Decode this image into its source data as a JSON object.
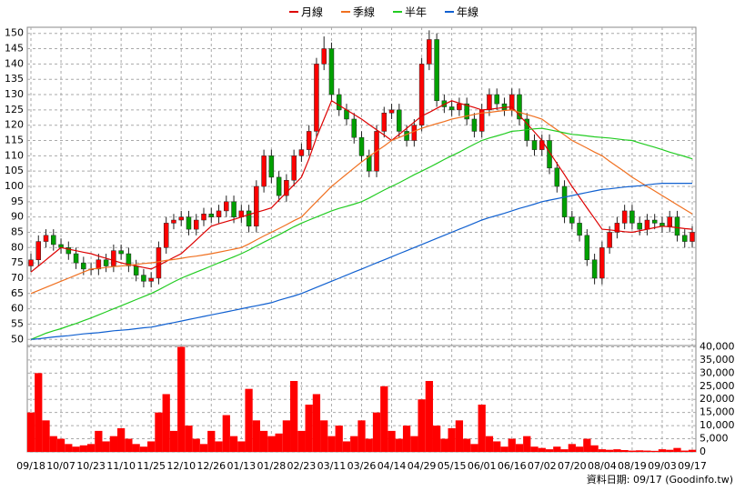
{
  "chart_data": [
    {
      "type": "candlestick",
      "categories": [
        "09/18",
        null,
        null,
        null,
        "10/07",
        null,
        null,
        null,
        "10/23",
        null,
        null,
        null,
        "11/10",
        null,
        null,
        null,
        "11/25",
        null,
        null,
        null,
        "12/10",
        null,
        null,
        null,
        "12/26",
        null,
        null,
        null,
        "01/13",
        null,
        null,
        null,
        "01/28",
        null,
        null,
        null,
        "02/23",
        null,
        null,
        null,
        "03/11",
        null,
        null,
        null,
        "03/26",
        null,
        null,
        null,
        "04/14",
        null,
        null,
        null,
        "04/29",
        null,
        null,
        null,
        "05/15",
        null,
        null,
        null,
        "06/01",
        null,
        null,
        null,
        "06/16",
        null,
        null,
        null,
        "07/02",
        null,
        null,
        null,
        "07/20",
        null,
        null,
        null,
        "08/04",
        null,
        null,
        null,
        "08/19",
        null,
        null,
        null,
        "09/03",
        null,
        null,
        null,
        "09/17"
      ],
      "open": [
        74,
        76,
        82,
        84,
        81,
        80,
        78,
        75,
        73,
        73,
        76,
        74,
        79,
        78,
        74,
        71,
        69,
        70,
        80,
        88,
        89,
        90,
        86,
        89,
        91,
        90,
        92,
        95,
        90,
        92,
        87,
        100,
        110,
        103,
        97,
        102,
        110,
        112,
        118,
        140,
        145,
        130,
        125,
        122,
        116,
        110,
        105,
        118,
        124,
        125,
        118,
        115,
        120,
        140,
        148,
        128,
        126,
        125,
        127,
        122,
        118,
        125,
        130,
        127,
        125,
        130,
        122,
        115,
        112,
        115,
        106,
        100,
        90,
        88,
        84,
        76,
        70,
        80,
        85,
        88,
        92,
        88,
        86,
        89,
        88,
        87,
        90,
        84,
        82
      ],
      "high": [
        78,
        84,
        86,
        86,
        83,
        82,
        80,
        77,
        75,
        78,
        78,
        81,
        81,
        80,
        76,
        73,
        72,
        82,
        90,
        91,
        92,
        92,
        91,
        93,
        93,
        94,
        97,
        97,
        94,
        94,
        102,
        112,
        112,
        105,
        104,
        112,
        114,
        120,
        142,
        149,
        147,
        132,
        127,
        124,
        118,
        112,
        120,
        126,
        127,
        127,
        120,
        122,
        142,
        151,
        150,
        130,
        128,
        129,
        129,
        124,
        127,
        132,
        132,
        129,
        132,
        132,
        124,
        117,
        117,
        117,
        108,
        102,
        92,
        90,
        86,
        78,
        82,
        87,
        90,
        94,
        94,
        90,
        91,
        91,
        90,
        92,
        92,
        86,
        87
      ],
      "low": [
        72,
        74,
        80,
        79,
        78,
        76,
        73,
        71,
        71,
        71,
        72,
        72,
        76,
        72,
        69,
        67,
        67,
        68,
        78,
        86,
        87,
        84,
        84,
        87,
        88,
        88,
        90,
        88,
        88,
        85,
        85,
        98,
        101,
        95,
        95,
        100,
        108,
        110,
        116,
        138,
        128,
        123,
        120,
        114,
        108,
        103,
        103,
        116,
        122,
        116,
        113,
        113,
        118,
        138,
        126,
        124,
        123,
        123,
        120,
        116,
        116,
        123,
        125,
        123,
        123,
        120,
        113,
        110,
        110,
        104,
        98,
        88,
        86,
        82,
        74,
        68,
        68,
        78,
        83,
        86,
        86,
        84,
        84,
        86,
        85,
        85,
        82,
        80,
        80
      ],
      "close": [
        76,
        82,
        84,
        81,
        80,
        78,
        75,
        73,
        73,
        76,
        74,
        79,
        78,
        74,
        71,
        69,
        70,
        80,
        88,
        89,
        90,
        86,
        89,
        91,
        90,
        92,
        95,
        90,
        92,
        87,
        100,
        110,
        103,
        97,
        102,
        110,
        112,
        118,
        140,
        145,
        130,
        125,
        122,
        116,
        110,
        105,
        118,
        124,
        125,
        118,
        115,
        120,
        140,
        148,
        128,
        126,
        125,
        127,
        122,
        118,
        125,
        130,
        127,
        125,
        130,
        122,
        115,
        112,
        115,
        106,
        100,
        90,
        88,
        84,
        76,
        70,
        80,
        85,
        88,
        92,
        88,
        86,
        89,
        88,
        87,
        90,
        84,
        82,
        85
      ],
      "up_color": "#ff0000",
      "down_color": "#00a000",
      "series": [
        {
          "name": "月線",
          "color": "#dd0000",
          "values": [
            72,
            74,
            76,
            78,
            80,
            79.5,
            79,
            78.5,
            78,
            77.2,
            76.5,
            75.8,
            75,
            74.5,
            74,
            73.5,
            73,
            74.2,
            75.5,
            76.8,
            78,
            80.2,
            82.5,
            84.8,
            87,
            87.8,
            88.5,
            89.2,
            90,
            90.8,
            91.5,
            92.2,
            93,
            95.5,
            98,
            100.5,
            103,
            109,
            116,
            122,
            128,
            126.5,
            125,
            123.5,
            122,
            120.2,
            118.5,
            116.8,
            115,
            117,
            119,
            121,
            123,
            124.2,
            125.5,
            126.8,
            128,
            127.2,
            126.5,
            125.8,
            125,
            125.2,
            125.5,
            125.8,
            126,
            123.2,
            120.5,
            117.8,
            115,
            111.2,
            107.5,
            103.8,
            100,
            96.5,
            93,
            89.5,
            86,
            85.8,
            85.5,
            85.2,
            85,
            85.5,
            86,
            86.5,
            87,
            86.8,
            86.5,
            86.2,
            86
          ]
        },
        {
          "name": "季線",
          "color": "#f07020",
          "values": [
            65,
            66,
            67,
            68,
            69,
            70,
            71,
            72,
            73,
            73.2,
            73.5,
            73.8,
            74,
            74.2,
            74.5,
            74.8,
            75,
            75.4,
            75.8,
            76.1,
            76.5,
            76.9,
            77.2,
            77.6,
            78,
            78.5,
            79,
            79.5,
            80,
            81.2,
            82.5,
            83.8,
            85,
            86.2,
            87.5,
            88.8,
            90,
            92.5,
            95,
            97.5,
            100,
            102,
            104,
            106,
            108,
            109.8,
            111.5,
            113.2,
            115,
            116,
            117,
            118,
            119,
            119.8,
            120.5,
            121.2,
            122,
            122.5,
            123,
            123.5,
            124,
            124.2,
            124.5,
            124.8,
            125,
            124.2,
            123.5,
            122.8,
            122,
            120.2,
            118.5,
            116.8,
            115,
            113.8,
            112.5,
            111.2,
            110,
            108.2,
            106.5,
            104.8,
            103,
            101.5,
            100,
            98.5,
            97,
            95.5,
            94,
            92.5,
            91
          ]
        },
        {
          "name": "半年",
          "color": "#22cc22",
          "values": [
            50,
            51,
            52,
            52.8,
            53.5,
            54.4,
            55.2,
            56.1,
            57,
            58,
            59,
            60,
            61,
            62,
            63,
            64,
            65,
            66.2,
            67.5,
            68.8,
            70,
            71,
            72,
            73,
            74,
            75,
            76,
            77,
            78,
            79.2,
            80.5,
            81.8,
            83,
            84.2,
            85.5,
            86.8,
            88,
            89,
            90,
            91,
            92,
            92.8,
            93.5,
            94.2,
            95,
            96.2,
            97.5,
            98.8,
            100,
            101.2,
            102.5,
            103.8,
            105,
            106.2,
            107.5,
            108.8,
            110,
            111.2,
            112.5,
            113.8,
            115,
            115.8,
            116.5,
            117.2,
            118,
            118.2,
            118.5,
            118.8,
            119,
            118.5,
            118,
            117.5,
            117,
            116.8,
            116.5,
            116.2,
            116,
            115.8,
            115.5,
            115.2,
            115,
            114.2,
            113.5,
            112.8,
            112,
            111.2,
            110.5,
            109.8,
            109
          ]
        },
        {
          "name": "年線",
          "color": "#1060d0",
          "values": [
            50,
            50.2,
            50.5,
            50.8,
            51,
            51.2,
            51.5,
            51.8,
            52,
            52.2,
            52.5,
            52.8,
            53,
            53.2,
            53.5,
            53.8,
            54,
            54.5,
            55,
            55.5,
            56,
            56.5,
            57,
            57.5,
            58,
            58.5,
            59,
            59.5,
            60,
            60.5,
            61,
            61.5,
            62,
            62.8,
            63.5,
            64.2,
            65,
            66,
            67,
            68,
            69,
            70,
            71,
            72,
            73,
            74,
            75,
            76,
            77,
            78,
            79,
            80,
            81,
            82,
            83,
            84,
            85,
            86,
            87,
            88,
            89,
            89.8,
            90.5,
            91.2,
            92,
            92.8,
            93.5,
            94.2,
            95,
            95.5,
            96,
            96.5,
            97,
            97.5,
            98,
            98.5,
            99,
            99.2,
            99.5,
            99.8,
            100,
            100.2,
            100.5,
            100.8,
            101,
            101,
            101,
            101,
            101
          ]
        }
      ],
      "ylim": [
        48,
        152
      ],
      "yticks": [
        50,
        55,
        60,
        65,
        70,
        75,
        80,
        85,
        90,
        95,
        100,
        105,
        110,
        115,
        120,
        125,
        130,
        135,
        140,
        145,
        150
      ],
      "grid": true,
      "legend": "top"
    },
    {
      "type": "bar",
      "values": [
        15000,
        30000,
        12000,
        6000,
        5000,
        3000,
        2000,
        2500,
        3000,
        8000,
        4000,
        6000,
        9000,
        5000,
        3000,
        2000,
        4000,
        15000,
        22000,
        8000,
        40000,
        10000,
        5000,
        3000,
        8000,
        4000,
        14000,
        6000,
        4000,
        24000,
        12000,
        8000,
        6000,
        7000,
        12000,
        27000,
        8000,
        18000,
        22000,
        12000,
        6000,
        10000,
        4000,
        6000,
        12000,
        5000,
        15000,
        25000,
        8000,
        5000,
        10000,
        6000,
        20000,
        27000,
        10000,
        5000,
        9000,
        12000,
        5000,
        3000,
        18000,
        6000,
        4000,
        2000,
        5000,
        3000,
        6000,
        2000,
        1500,
        1000,
        2000,
        1000,
        3000,
        2000,
        5000,
        2500,
        1000,
        800,
        1000,
        700,
        500,
        600,
        500,
        400,
        1000,
        800,
        1500,
        500,
        800
      ],
      "color": "#ff0000",
      "ylim": [
        0,
        40500
      ],
      "yticks": [
        0,
        {
          "value": 5000,
          "label": "5,000"
        },
        {
          "value": 10000,
          "label": "10,000"
        },
        {
          "value": 15000,
          "label": "15,000"
        },
        {
          "value": 20000,
          "label": "20,000"
        },
        {
          "value": 25000,
          "label": "25,000"
        },
        {
          "value": 30000,
          "label": "30,000"
        },
        {
          "value": 35000,
          "label": "35,000"
        },
        {
          "value": 40000,
          "label": "40,000"
        }
      ],
      "grid": true,
      "footnote": "資料日期: 09/17  (Goodinfo.tw)"
    }
  ]
}
